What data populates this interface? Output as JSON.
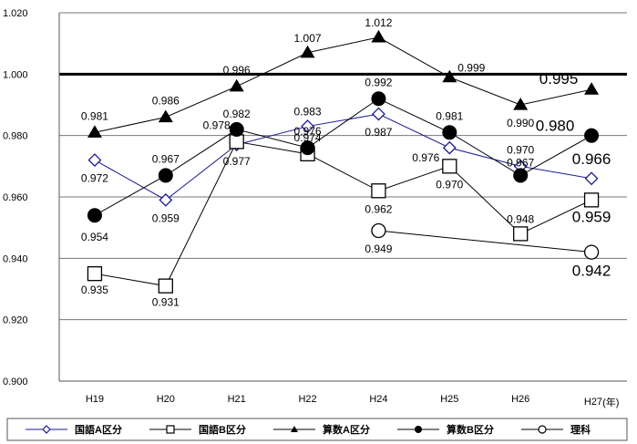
{
  "chart_data": {
    "type": "line",
    "categories": [
      "H19",
      "H20",
      "H21",
      "H22",
      "H24",
      "H25",
      "H26",
      "H27"
    ],
    "x_unit": "(年)",
    "ylim": [
      0.9,
      1.02
    ],
    "yticks": [
      "0.900",
      "0.920",
      "0.940",
      "0.960",
      "0.980",
      "1.000",
      "1.020"
    ],
    "grid": true,
    "reference_line": 1.0,
    "legend_position": "bottom",
    "series": [
      {
        "name": "国語A区分",
        "marker": "diamond-open",
        "color": "#1a1a8c",
        "values": [
          0.972,
          0.959,
          0.977,
          0.983,
          0.987,
          0.976,
          0.97,
          0.966
        ],
        "labels": [
          "0.972",
          "0.959",
          "0.977",
          "0.983",
          "0.987",
          "0.976",
          "0.970",
          "0.966"
        ]
      },
      {
        "name": "国語B区分",
        "marker": "square-open",
        "color": "#000000",
        "values": [
          0.935,
          0.931,
          0.978,
          0.974,
          0.962,
          0.97,
          0.948,
          0.959
        ],
        "labels": [
          "0.935",
          "0.931",
          "0.978",
          "0.974",
          "0.962",
          "0.970",
          "0.948",
          "0.959"
        ]
      },
      {
        "name": "算数A区分",
        "marker": "triangle-filled",
        "color": "#000000",
        "values": [
          0.981,
          0.986,
          0.996,
          1.007,
          1.012,
          0.999,
          0.99,
          0.995
        ],
        "labels": [
          "0.981",
          "0.986",
          "0.996",
          "1.007",
          "1.012",
          "0.999",
          "0.990",
          "0.995"
        ]
      },
      {
        "name": "算数B区分",
        "marker": "circle-filled",
        "color": "#000000",
        "values": [
          0.954,
          0.967,
          0.982,
          0.976,
          0.992,
          0.981,
          0.967,
          0.98
        ],
        "labels": [
          "0.954",
          "0.967",
          "0.982",
          "0.976",
          "0.992",
          "0.981",
          "0.967",
          "0.980"
        ]
      },
      {
        "name": "理科",
        "marker": "circle-open",
        "color": "#000000",
        "values": [
          null,
          null,
          null,
          null,
          0.949,
          null,
          null,
          0.942
        ],
        "labels": [
          null,
          null,
          null,
          null,
          "0.949",
          null,
          null,
          "0.942"
        ]
      }
    ]
  }
}
